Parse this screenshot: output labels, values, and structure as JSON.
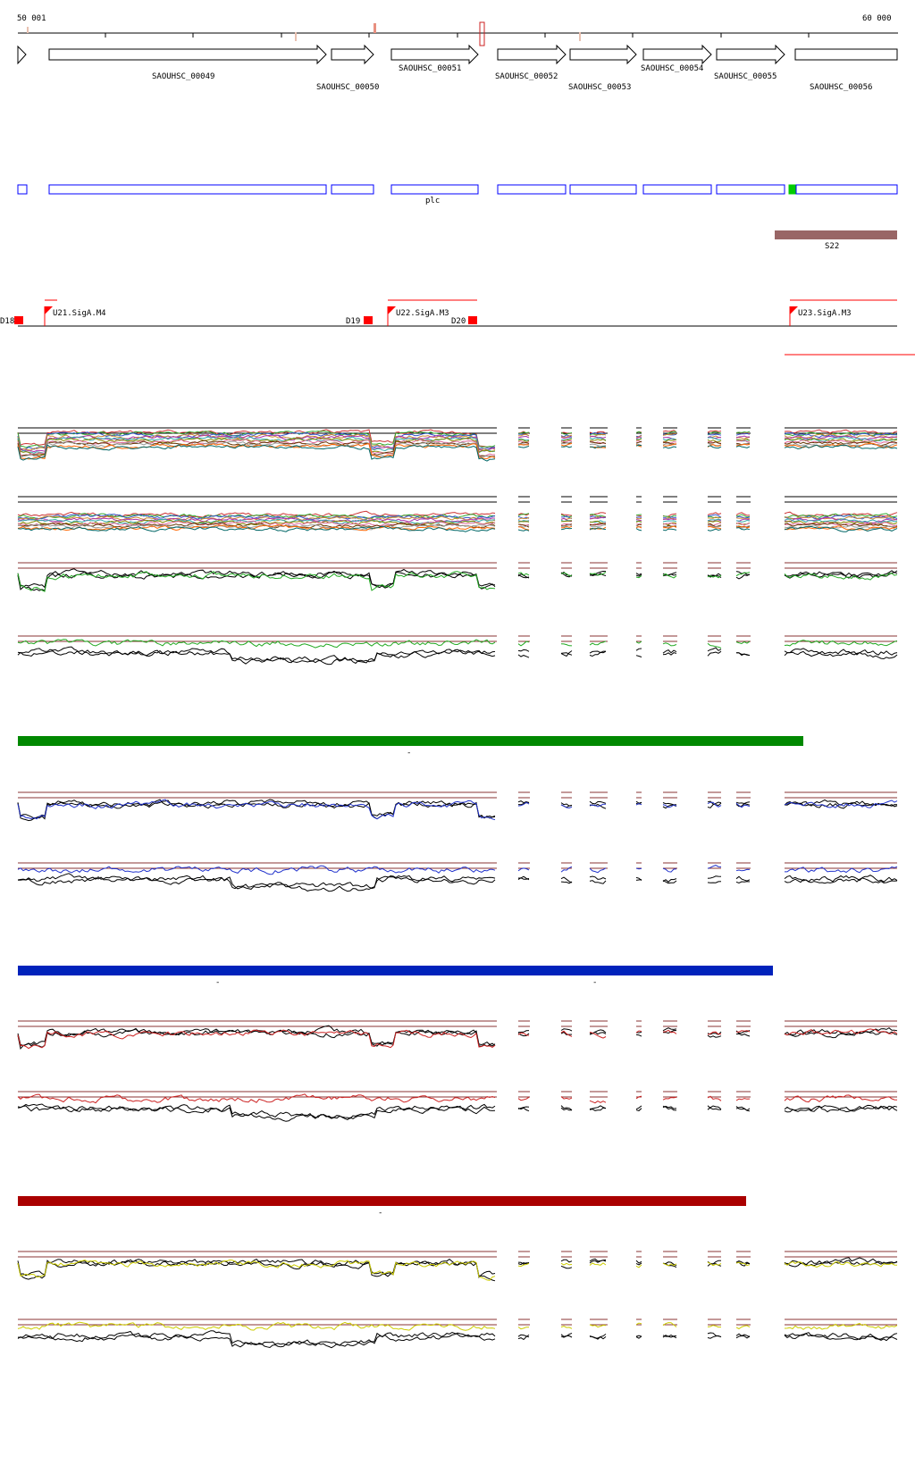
{
  "coordinates": {
    "start_label": "50 001",
    "end_label": "60 000"
  },
  "genes": [
    {
      "label": "SAOUHSC_00049"
    },
    {
      "label": "SAOUHSC_00050"
    },
    {
      "label": "SAOUHSC_00051"
    },
    {
      "label": "SAOUHSC_00052"
    },
    {
      "label": "SAOUHSC_00053"
    },
    {
      "label": "SAOUHSC_00054"
    },
    {
      "label": "SAOUHSC_00055"
    },
    {
      "label": "SAOUHSC_00056"
    }
  ],
  "gene_names": {
    "plc": "plc"
  },
  "region_label": "S22",
  "promoters": [
    {
      "label": "U21.SigA.M4"
    },
    {
      "label": "U22.SigA.M3"
    },
    {
      "label": "U23.SigA.M3"
    }
  ],
  "terminators": [
    {
      "label": "D18"
    },
    {
      "label": "D19"
    },
    {
      "label": "D20"
    }
  ],
  "condition_bars": [
    {
      "marker": "-"
    },
    {
      "marker": "-",
      "marker2": "-"
    },
    {
      "marker": "-"
    }
  ],
  "colors": {
    "gene_outline": "#000000",
    "gene_box_blue": "#0000ff",
    "gene_box_green": "#00cc00",
    "region_brown": "#996666",
    "promoter_red": "#ff0000",
    "bar_green": "#008800",
    "bar_blue": "#0022bb",
    "bar_red": "#aa0000",
    "threshold": "#883333",
    "trace_green": "#22aa22",
    "trace_blue": "#2233cc",
    "trace_red": "#cc2222",
    "trace_yellow": "#cccc00",
    "trace_black": "#000000"
  }
}
